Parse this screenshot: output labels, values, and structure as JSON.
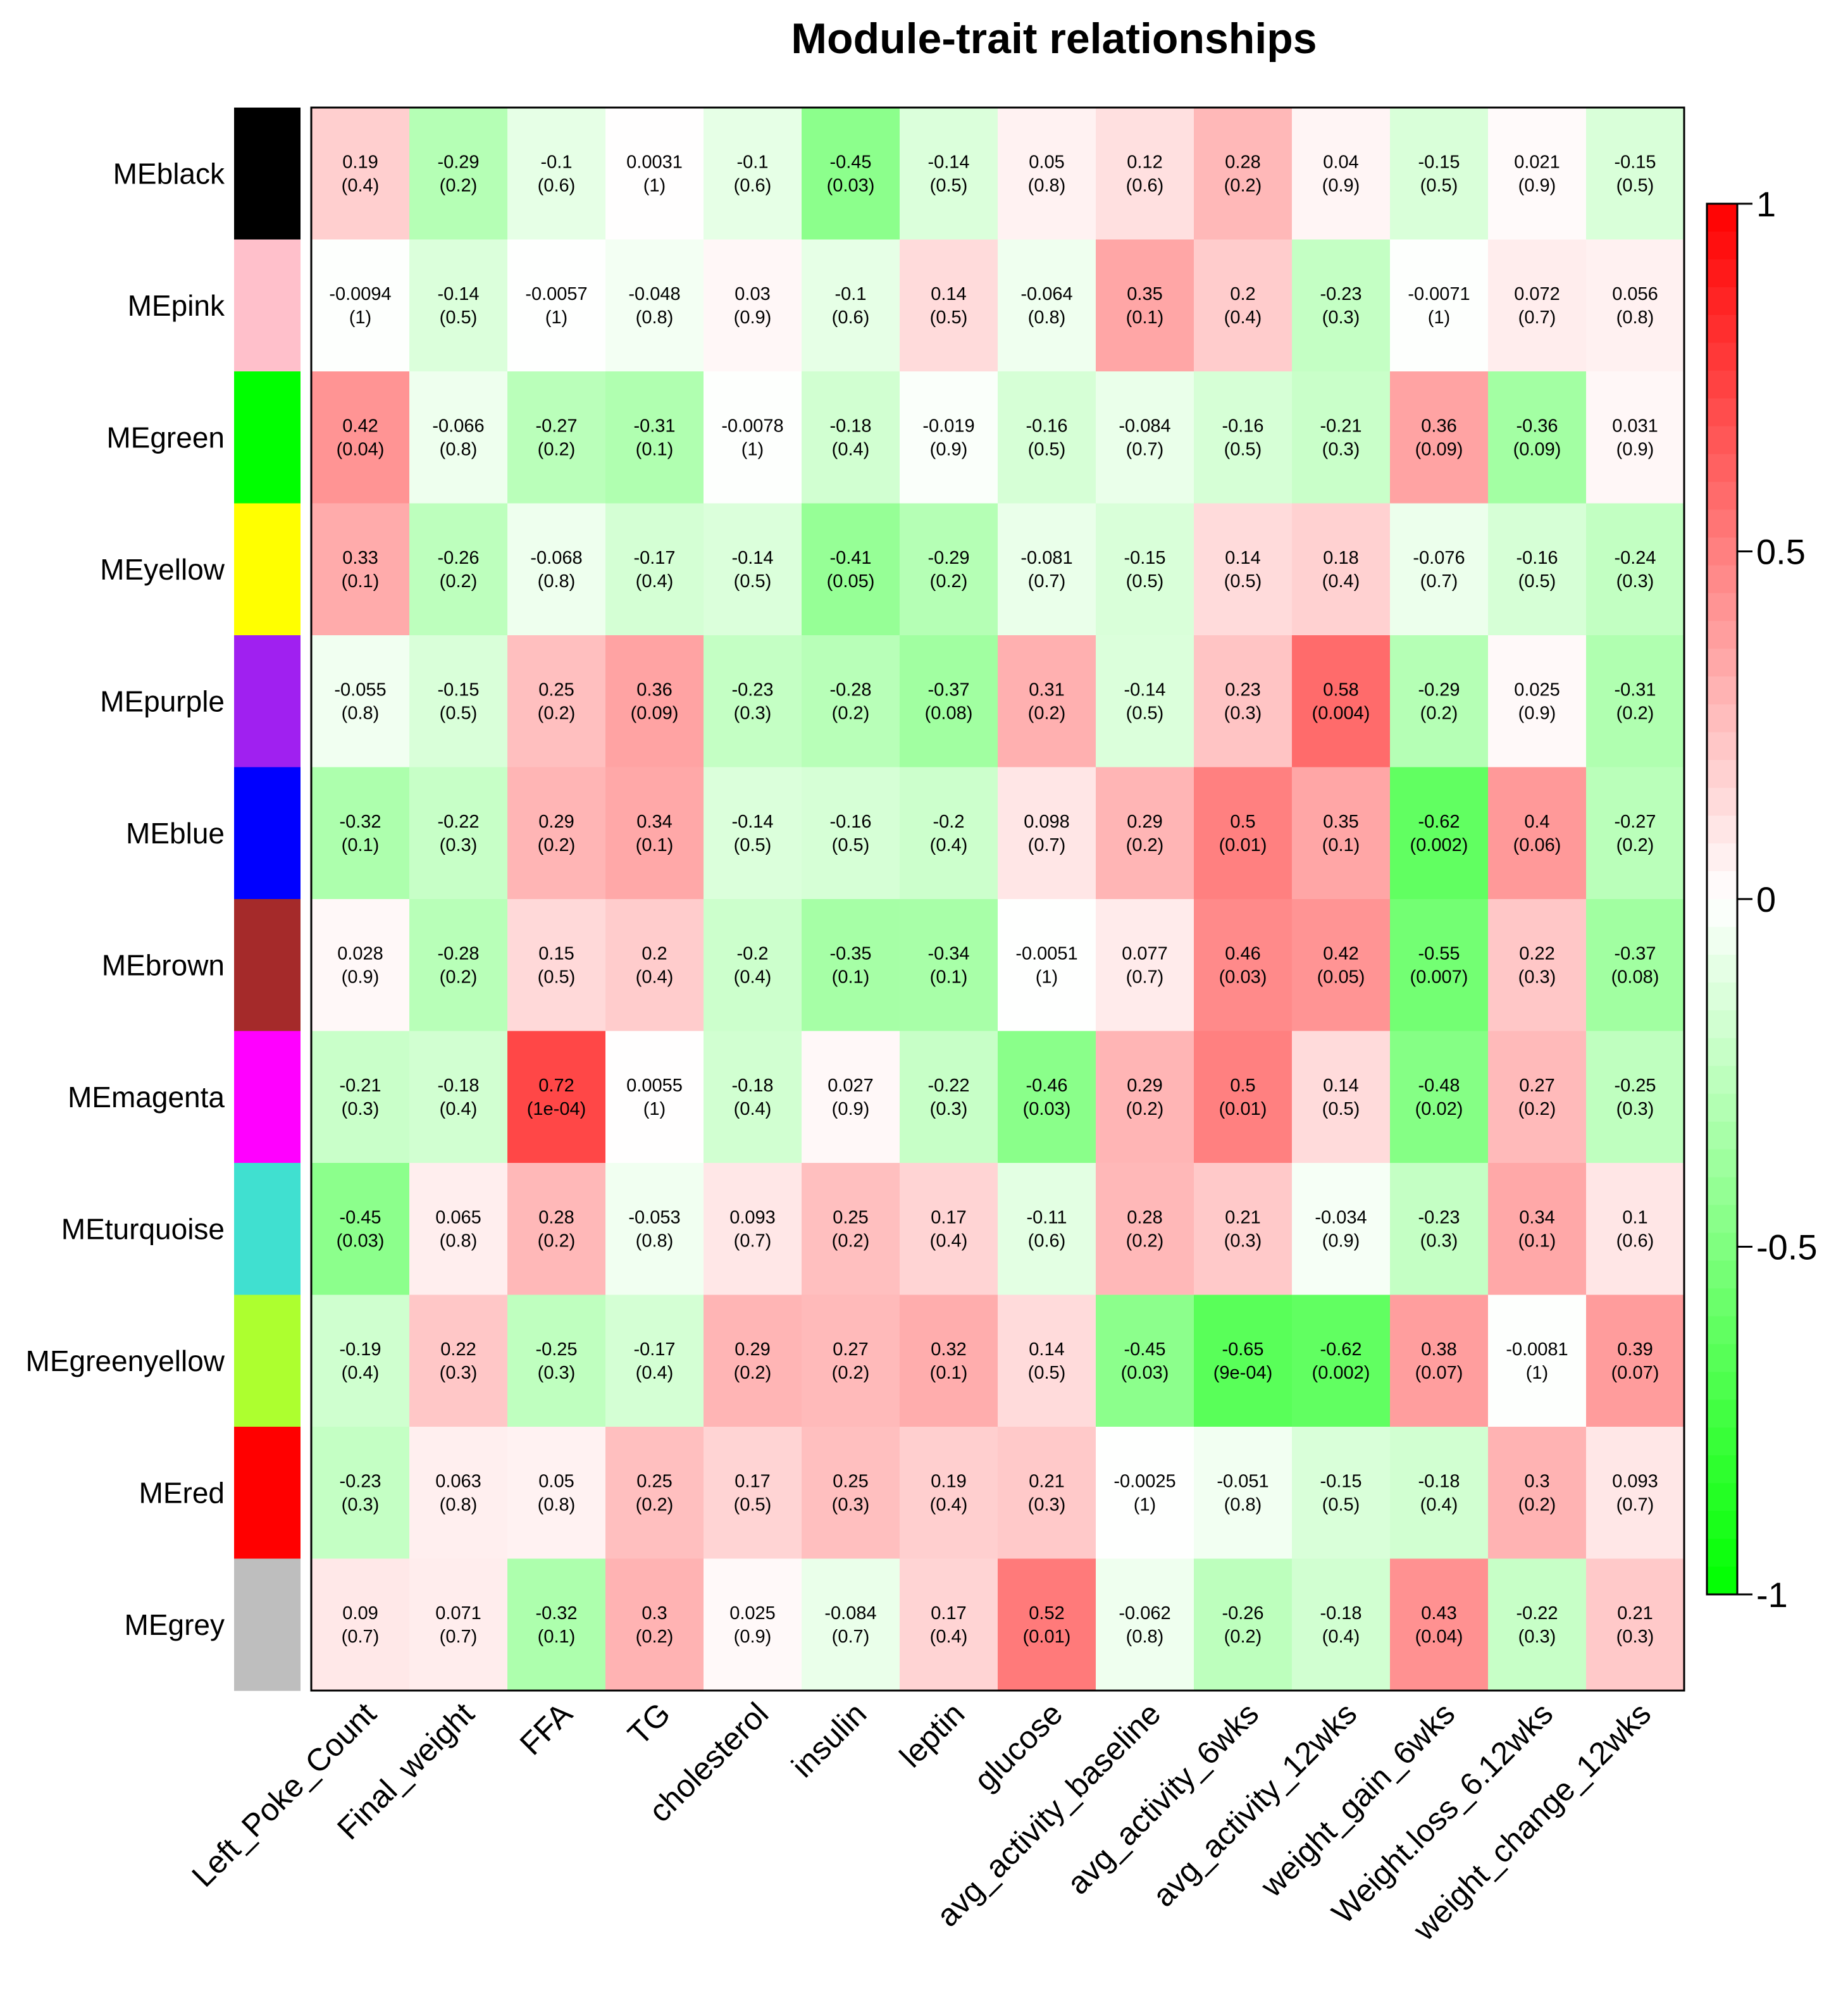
{
  "chart_data": {
    "type": "heatmap",
    "title": "Module-trait relationships",
    "rows": [
      "MEblack",
      "MEpink",
      "MEgreen",
      "MEyellow",
      "MEpurple",
      "MEblue",
      "MEbrown",
      "MEmagenta",
      "MEturquoise",
      "MEgreenyellow",
      "MEred",
      "MEgrey"
    ],
    "row_colors": [
      "#000000",
      "#FFC0CB",
      "#00FF00",
      "#FFFF00",
      "#A020F0",
      "#0000FF",
      "#A52A2A",
      "#FF00FF",
      "#40E0D0",
      "#ADFF2F",
      "#FF0000",
      "#BEBEBE"
    ],
    "columns": [
      "Left_Poke_Count",
      "Final_weight",
      "FFA",
      "TG",
      "cholesterol",
      "insulin",
      "leptin",
      "glucose",
      "avg_activity_baseline",
      "avg_activity_6wks",
      "avg_activity_12wks",
      "weight_gain_6wks",
      "Weight.loss_6.12wks",
      "weight_change_12wks"
    ],
    "correlations": [
      [
        0.19,
        -0.29,
        -0.1,
        0.0031,
        -0.1,
        -0.45,
        -0.14,
        0.05,
        0.12,
        0.28,
        0.04,
        -0.15,
        0.021,
        -0.15
      ],
      [
        -0.0094,
        -0.14,
        -0.0057,
        -0.048,
        0.03,
        -0.1,
        0.14,
        -0.064,
        0.35,
        0.2,
        -0.23,
        -0.0071,
        0.072,
        0.056
      ],
      [
        0.42,
        -0.066,
        -0.27,
        -0.31,
        -0.0078,
        -0.18,
        -0.019,
        -0.16,
        -0.084,
        -0.16,
        -0.21,
        0.36,
        -0.36,
        0.031
      ],
      [
        0.33,
        -0.26,
        -0.068,
        -0.17,
        -0.14,
        -0.41,
        -0.29,
        -0.081,
        -0.15,
        0.14,
        0.18,
        -0.076,
        -0.16,
        -0.24
      ],
      [
        -0.055,
        -0.15,
        0.25,
        0.36,
        -0.23,
        -0.28,
        -0.37,
        0.31,
        -0.14,
        0.23,
        0.58,
        -0.29,
        0.025,
        -0.31
      ],
      [
        -0.32,
        -0.22,
        0.29,
        0.34,
        -0.14,
        -0.16,
        -0.2,
        0.098,
        0.29,
        0.5,
        0.35,
        -0.62,
        0.4,
        -0.27
      ],
      [
        0.028,
        -0.28,
        0.15,
        0.2,
        -0.2,
        -0.35,
        -0.34,
        -0.0051,
        0.077,
        0.46,
        0.42,
        -0.55,
        0.22,
        -0.37
      ],
      [
        -0.21,
        -0.18,
        0.72,
        0.0055,
        -0.18,
        0.027,
        -0.22,
        -0.46,
        0.29,
        0.5,
        0.14,
        -0.48,
        0.27,
        -0.25
      ],
      [
        -0.45,
        0.065,
        0.28,
        -0.053,
        0.093,
        0.25,
        0.17,
        -0.11,
        0.28,
        0.21,
        -0.034,
        -0.23,
        0.34,
        0.1
      ],
      [
        -0.19,
        0.22,
        -0.25,
        -0.17,
        0.29,
        0.27,
        0.32,
        0.14,
        -0.45,
        -0.65,
        -0.62,
        0.38,
        -0.0081,
        0.39
      ],
      [
        -0.23,
        0.063,
        0.05,
        0.25,
        0.17,
        0.25,
        0.19,
        0.21,
        -0.0025,
        -0.051,
        -0.15,
        -0.18,
        0.3,
        0.093
      ],
      [
        0.09,
        0.071,
        -0.32,
        0.3,
        0.025,
        -0.084,
        0.17,
        0.52,
        -0.062,
        -0.26,
        -0.18,
        0.43,
        -0.22,
        0.21
      ]
    ],
    "cell_text": [
      [
        "0.19",
        "-0.29",
        "-0.1",
        "0.0031",
        "-0.1",
        "-0.45",
        "-0.14",
        "0.05",
        "0.12",
        "0.28",
        "0.04",
        "-0.15",
        "0.021",
        "-0.15"
      ],
      [
        "-0.0094",
        "-0.14",
        "-0.0057",
        "-0.048",
        "0.03",
        "-0.1",
        "0.14",
        "-0.064",
        "0.35",
        "0.2",
        "-0.23",
        "-0.0071",
        "0.072",
        "0.056"
      ],
      [
        "0.42",
        "-0.066",
        "-0.27",
        "-0.31",
        "-0.0078",
        "-0.18",
        "-0.019",
        "-0.16",
        "-0.084",
        "-0.16",
        "-0.21",
        "0.36",
        "-0.36",
        "0.031"
      ],
      [
        "0.33",
        "-0.26",
        "-0.068",
        "-0.17",
        "-0.14",
        "-0.41",
        "-0.29",
        "-0.081",
        "-0.15",
        "0.14",
        "0.18",
        "-0.076",
        "-0.16",
        "-0.24"
      ],
      [
        "-0.055",
        "-0.15",
        "0.25",
        "0.36",
        "-0.23",
        "-0.28",
        "-0.37",
        "0.31",
        "-0.14",
        "0.23",
        "0.58",
        "-0.29",
        "0.025",
        "-0.31"
      ],
      [
        "-0.32",
        "-0.22",
        "0.29",
        "0.34",
        "-0.14",
        "-0.16",
        "-0.2",
        "0.098",
        "0.29",
        "0.5",
        "0.35",
        "-0.62",
        "0.4",
        "-0.27"
      ],
      [
        "0.028",
        "-0.28",
        "0.15",
        "0.2",
        "-0.2",
        "-0.35",
        "-0.34",
        "-0.0051",
        "0.077",
        "0.46",
        "0.42",
        "-0.55",
        "0.22",
        "-0.37"
      ],
      [
        "-0.21",
        "-0.18",
        "0.72",
        "0.0055",
        "-0.18",
        "0.027",
        "-0.22",
        "-0.46",
        "0.29",
        "0.5",
        "0.14",
        "-0.48",
        "0.27",
        "-0.25"
      ],
      [
        "-0.45",
        "0.065",
        "0.28",
        "-0.053",
        "0.093",
        "0.25",
        "0.17",
        "-0.11",
        "0.28",
        "0.21",
        "-0.034",
        "-0.23",
        "0.34",
        "0.1"
      ],
      [
        "-0.19",
        "0.22",
        "-0.25",
        "-0.17",
        "0.29",
        "0.27",
        "0.32",
        "0.14",
        "-0.45",
        "-0.65",
        "-0.62",
        "0.38",
        "-0.0081",
        "0.39"
      ],
      [
        "-0.23",
        "0.063",
        "0.05",
        "0.25",
        "0.17",
        "0.25",
        "0.19",
        "0.21",
        "-0.0025",
        "-0.051",
        "-0.15",
        "-0.18",
        "0.3",
        "0.093"
      ],
      [
        "0.09",
        "0.071",
        "-0.32",
        "0.3",
        "0.025",
        "-0.084",
        "0.17",
        "0.52",
        "-0.062",
        "-0.26",
        "-0.18",
        "0.43",
        "-0.22",
        "0.21"
      ]
    ],
    "pvalues": [
      [
        "0.4",
        "0.2",
        "0.6",
        "1",
        "0.6",
        "0.03",
        "0.5",
        "0.8",
        "0.6",
        "0.2",
        "0.9",
        "0.5",
        "0.9",
        "0.5"
      ],
      [
        "1",
        "0.5",
        "1",
        "0.8",
        "0.9",
        "0.6",
        "0.5",
        "0.8",
        "0.1",
        "0.4",
        "0.3",
        "1",
        "0.7",
        "0.8"
      ],
      [
        "0.04",
        "0.8",
        "0.2",
        "0.1",
        "1",
        "0.4",
        "0.9",
        "0.5",
        "0.7",
        "0.5",
        "0.3",
        "0.09",
        "0.09",
        "0.9"
      ],
      [
        "0.1",
        "0.2",
        "0.8",
        "0.4",
        "0.5",
        "0.05",
        "0.2",
        "0.7",
        "0.5",
        "0.5",
        "0.4",
        "0.7",
        "0.5",
        "0.3"
      ],
      [
        "0.8",
        "0.5",
        "0.2",
        "0.09",
        "0.3",
        "0.2",
        "0.08",
        "0.2",
        "0.5",
        "0.3",
        "0.004",
        "0.2",
        "0.9",
        "0.2"
      ],
      [
        "0.1",
        "0.3",
        "0.2",
        "0.1",
        "0.5",
        "0.5",
        "0.4",
        "0.7",
        "0.2",
        "0.01",
        "0.1",
        "0.002",
        "0.06",
        "0.2"
      ],
      [
        "0.9",
        "0.2",
        "0.5",
        "0.4",
        "0.4",
        "0.1",
        "0.1",
        "1",
        "0.7",
        "0.03",
        "0.05",
        "0.007",
        "0.3",
        "0.08"
      ],
      [
        "0.3",
        "0.4",
        "1e-04",
        "1",
        "0.4",
        "0.9",
        "0.3",
        "0.03",
        "0.2",
        "0.01",
        "0.5",
        "0.02",
        "0.2",
        "0.3"
      ],
      [
        "0.03",
        "0.8",
        "0.2",
        "0.8",
        "0.7",
        "0.2",
        "0.4",
        "0.6",
        "0.2",
        "0.3",
        "0.9",
        "0.3",
        "0.1",
        "0.6"
      ],
      [
        "0.4",
        "0.3",
        "0.3",
        "0.4",
        "0.2",
        "0.2",
        "0.1",
        "0.5",
        "0.03",
        "9e-04",
        "0.002",
        "0.07",
        "1",
        "0.07"
      ],
      [
        "0.3",
        "0.8",
        "0.8",
        "0.2",
        "0.5",
        "0.3",
        "0.4",
        "0.3",
        "1",
        "0.8",
        "0.5",
        "0.4",
        "0.2",
        "0.7"
      ],
      [
        "0.7",
        "0.7",
        "0.1",
        "0.2",
        "0.9",
        "0.7",
        "0.4",
        "0.01",
        "0.8",
        "0.2",
        "0.4",
        "0.04",
        "0.3",
        "0.3"
      ]
    ],
    "color_scale": {
      "min": -1,
      "mid": 0,
      "max": 1,
      "low_color": "#00FF00",
      "mid_color": "#FFFFFF",
      "high_color": "#FF0000",
      "ticks": [
        "1",
        "0.5",
        "0",
        "-0.5",
        "-1"
      ],
      "tick_values": [
        1,
        0.5,
        0,
        -0.5,
        -1
      ]
    }
  }
}
